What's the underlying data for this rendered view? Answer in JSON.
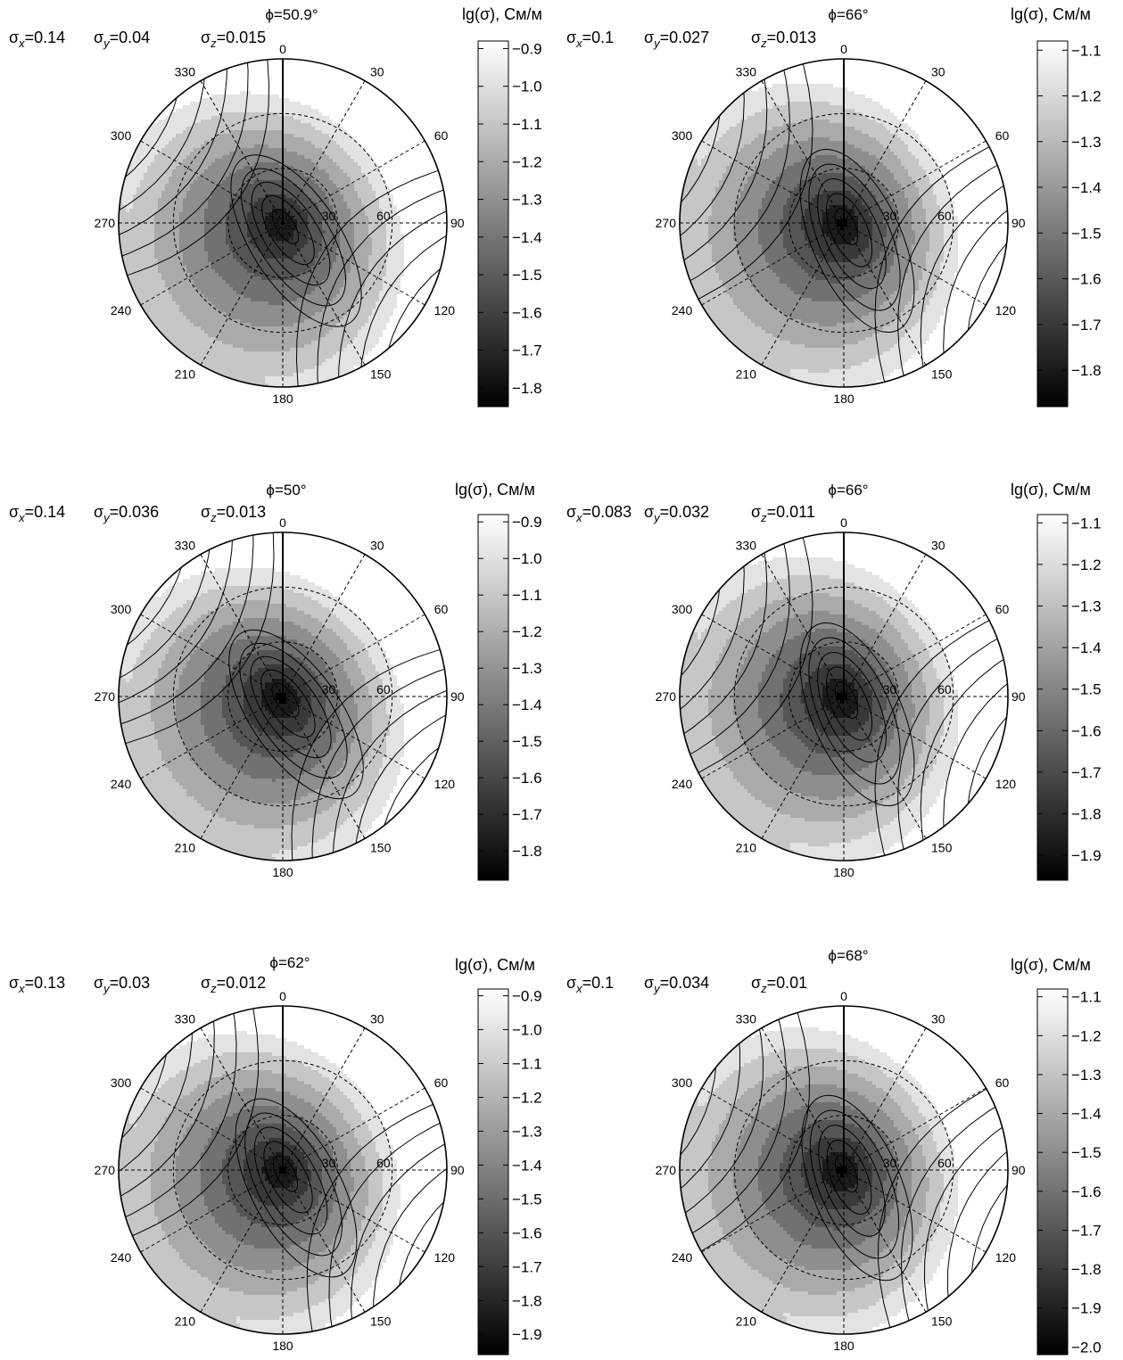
{
  "chart_data": [
    {
      "type": "heatmap",
      "projection": "polar",
      "title": "ϕ=50.9°",
      "sigmas": [
        {
          "sym": "σ",
          "sub": "x",
          "val": "=0.14"
        },
        {
          "sym": "σ",
          "sub": "y",
          "val": "=0.04"
        },
        {
          "sym": "σ",
          "sub": "z",
          "val": "=0.015"
        }
      ],
      "colorbar_label": "lg(σ), См/м",
      "colorbar_ticks": [
        "−0.9",
        "−1.0",
        "−1.1",
        "−1.2",
        "−1.3",
        "−1.4",
        "−1.5",
        "−1.6",
        "−1.7",
        "−1.8"
      ],
      "colorbar_range": [
        -1.85,
        -0.88
      ],
      "azimuth_labels": [
        "0",
        "30",
        "60",
        "90",
        "120",
        "150",
        "180",
        "210",
        "240",
        "270",
        "300",
        "330"
      ],
      "radial_labels": [
        "30",
        "60"
      ],
      "center_value": -1.82,
      "max_value": -0.88,
      "ellipse_axis_deg": 33,
      "gradient_direction_deg": 50.9
    },
    {
      "type": "heatmap",
      "projection": "polar",
      "title": "ϕ=66°",
      "sigmas": [
        {
          "sym": "σ",
          "sub": "x",
          "val": "=0.1"
        },
        {
          "sym": "σ",
          "sub": "y",
          "val": "=0.027"
        },
        {
          "sym": "σ",
          "sub": "z",
          "val": "=0.013"
        }
      ],
      "colorbar_label": "lg(σ), См/м",
      "colorbar_ticks": [
        "−1.1",
        "−1.2",
        "−1.3",
        "−1.4",
        "−1.5",
        "−1.6",
        "−1.7",
        "−1.8"
      ],
      "colorbar_range": [
        -1.88,
        -1.08
      ],
      "azimuth_labels": [
        "0",
        "30",
        "60",
        "90",
        "120",
        "150",
        "180",
        "210",
        "240",
        "270",
        "300",
        "330"
      ],
      "radial_labels": [
        "30",
        "60"
      ],
      "center_value": -1.88,
      "max_value": -1.08,
      "ellipse_axis_deg": 24,
      "gradient_direction_deg": 66
    },
    {
      "type": "heatmap",
      "projection": "polar",
      "title": "ϕ=50°",
      "sigmas": [
        {
          "sym": "σ",
          "sub": "x",
          "val": "=0.14"
        },
        {
          "sym": "σ",
          "sub": "y",
          "val": "=0.036"
        },
        {
          "sym": "σ",
          "sub": "z",
          "val": "=0.013"
        }
      ],
      "colorbar_label": "lg(σ), См/м",
      "colorbar_ticks": [
        "−0.9",
        "−1.0",
        "−1.1",
        "−1.2",
        "−1.3",
        "−1.4",
        "−1.5",
        "−1.6",
        "−1.7",
        "−1.8"
      ],
      "colorbar_range": [
        -1.88,
        -0.88
      ],
      "azimuth_labels": [
        "0",
        "30",
        "60",
        "90",
        "120",
        "150",
        "180",
        "210",
        "240",
        "270",
        "300",
        "330"
      ],
      "radial_labels": [
        "30",
        "60"
      ],
      "center_value": -1.88,
      "max_value": -0.88,
      "ellipse_axis_deg": 35,
      "gradient_direction_deg": 50
    },
    {
      "type": "heatmap",
      "projection": "polar",
      "title": "ϕ=66°",
      "sigmas": [
        {
          "sym": "σ",
          "sub": "x",
          "val": "=0.083"
        },
        {
          "sym": "σ",
          "sub": "y",
          "val": "=0.032"
        },
        {
          "sym": "σ",
          "sub": "z",
          "val": "=0.011"
        }
      ],
      "colorbar_label": "lg(σ), См/м",
      "colorbar_ticks": [
        "−1.1",
        "−1.2",
        "−1.3",
        "−1.4",
        "−1.5",
        "−1.6",
        "−1.7",
        "−1.8",
        "−1.9"
      ],
      "colorbar_range": [
        -1.96,
        -1.08
      ],
      "azimuth_labels": [
        "0",
        "30",
        "60",
        "90",
        "120",
        "150",
        "180",
        "210",
        "240",
        "270",
        "300",
        "330"
      ],
      "radial_labels": [
        "30",
        "60"
      ],
      "center_value": -1.96,
      "max_value": -1.08,
      "ellipse_axis_deg": 24,
      "gradient_direction_deg": 66
    },
    {
      "type": "heatmap",
      "projection": "polar",
      "title": "ϕ=62°",
      "sigmas": [
        {
          "sym": "σ",
          "sub": "x",
          "val": "=0.13"
        },
        {
          "sym": "σ",
          "sub": "y",
          "val": "=0.03"
        },
        {
          "sym": "σ",
          "sub": "z",
          "val": "=0.012"
        }
      ],
      "colorbar_label": "lg(σ), См/м",
      "colorbar_ticks": [
        "−0.9",
        "−1.0",
        "−1.1",
        "−1.2",
        "−1.3",
        "−1.4",
        "−1.5",
        "−1.6",
        "−1.7",
        "−1.8",
        "−1.9"
      ],
      "colorbar_range": [
        -1.96,
        -0.88
      ],
      "azimuth_labels": [
        "0",
        "30",
        "60",
        "90",
        "120",
        "150",
        "180",
        "210",
        "240",
        "270",
        "300",
        "330"
      ],
      "radial_labels": [
        "30",
        "60"
      ],
      "center_value": -1.94,
      "max_value": -0.88,
      "ellipse_axis_deg": 28,
      "gradient_direction_deg": 62
    },
    {
      "type": "heatmap",
      "projection": "polar",
      "title": "ϕ=68°",
      "sigmas": [
        {
          "sym": "σ",
          "sub": "x",
          "val": "=0.1"
        },
        {
          "sym": "σ",
          "sub": "y",
          "val": "=0.034"
        },
        {
          "sym": "σ",
          "sub": "z",
          "val": "=0.01"
        }
      ],
      "colorbar_label": "lg(σ), См/м",
      "colorbar_ticks": [
        "−1.1",
        "−1.2",
        "−1.3",
        "−1.4",
        "−1.5",
        "−1.6",
        "−1.7",
        "−1.8",
        "−1.9",
        "−2.0"
      ],
      "colorbar_range": [
        -2.02,
        -1.08
      ],
      "azimuth_labels": [
        "0",
        "30",
        "60",
        "90",
        "120",
        "150",
        "180",
        "210",
        "240",
        "270",
        "300",
        "330"
      ],
      "radial_labels": [
        "30",
        "60"
      ],
      "center_value": -2.02,
      "max_value": -1.08,
      "ellipse_axis_deg": 22,
      "gradient_direction_deg": 68
    }
  ]
}
